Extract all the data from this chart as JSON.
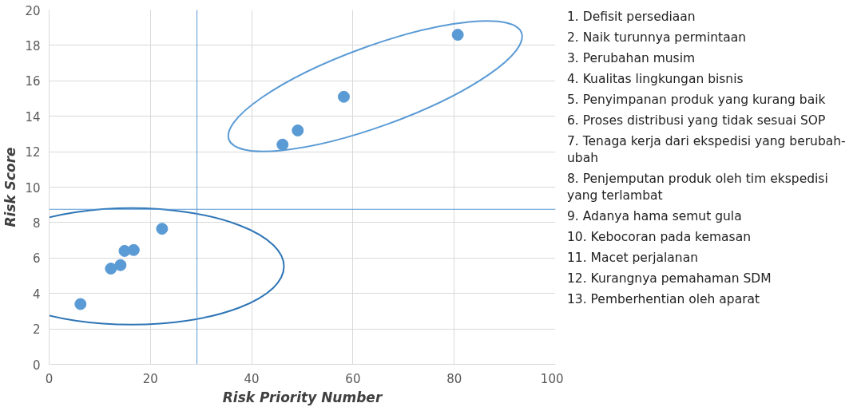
{
  "chart_data": {
    "type": "scatter",
    "xlabel": "Risk Priority Number",
    "ylabel": "Risk Score",
    "x": [
      80.7,
      58.2,
      49.1,
      46.1,
      22.3,
      16.7,
      14.9,
      12.2,
      6.2,
      14.1
    ],
    "series": [
      {
        "color": "#5b9bd5",
        "values": [
          18.6,
          15.1,
          13.2,
          12.4,
          7.65,
          6.45,
          6.4,
          5.4,
          3.4,
          5.6
        ]
      }
    ],
    "xlim": [
      0,
      100
    ],
    "ylim": [
      0,
      20
    ],
    "xticks": [
      0,
      20,
      40,
      60,
      80,
      100
    ],
    "yticks": [
      0,
      2,
      4,
      6,
      8,
      10,
      12,
      14,
      16,
      18,
      20
    ],
    "grid": true,
    "marker": "circle",
    "ref_lines": [
      {
        "axis": "x",
        "value": 29.2,
        "color": "#5b9bd5"
      },
      {
        "axis": "y",
        "value": 8.75,
        "color": "#5b9bd5"
      }
    ],
    "annotations": [
      "1. Defisit persediaan",
      "2. Naik turunnya permintaan",
      "3. Perubahan musim",
      "4. Kualitas lingkungan bisnis",
      "5. Penyimpanan produk yang kurang baik",
      "6. Proses distribusi yang tidak sesuai SOP",
      "7. Tenaga kerja dari ekspedisi yang berubah-ubah",
      "8. Penjemputan produk oleh tim ekspedisi yang terlambat",
      "9. Adanya hama semut gula",
      "10. Kebocoran pada kemasan",
      "11. Macet perjalanan",
      "12. Kurangnya pemahaman SDM",
      "13. Pemberhentian oleh aparat"
    ]
  }
}
